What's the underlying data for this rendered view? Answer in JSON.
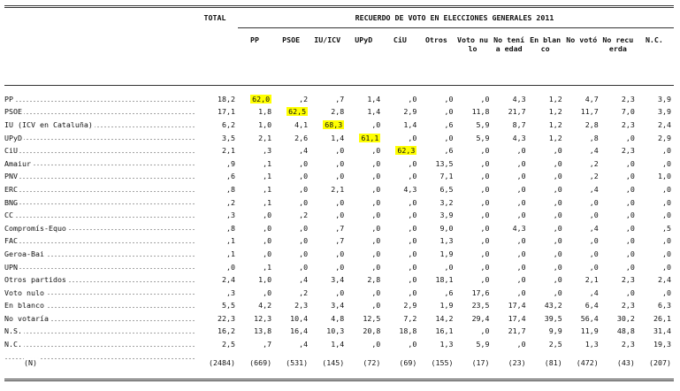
{
  "table": {
    "group_header": "RECUERDO DE VOTO EN ELECCIONES GENERALES 2011",
    "columns": [
      "TOTAL",
      "PP",
      "PSOE",
      "IU/ICV",
      "UPyD",
      "CiU",
      "Otros",
      "Voto nulo",
      "No tenía edad",
      "En blanco",
      "No votó",
      "No recuerda",
      "N.C."
    ],
    "highlight_color": "#ffff00",
    "highlighted_cells": [
      [
        0,
        1
      ],
      [
        1,
        2
      ],
      [
        2,
        3
      ],
      [
        3,
        4
      ],
      [
        4,
        5
      ]
    ],
    "rows": [
      {
        "label": "PP",
        "cells": [
          "18,2",
          "62,0",
          ",2",
          ",7",
          "1,4",
          ",0",
          ",0",
          ",0",
          "4,3",
          "1,2",
          "4,7",
          "2,3",
          "3,9"
        ]
      },
      {
        "label": "PSOE",
        "cells": [
          "17,1",
          "1,8",
          "62,5",
          "2,8",
          "1,4",
          "2,9",
          ",0",
          "11,8",
          "21,7",
          "1,2",
          "11,7",
          "7,0",
          "3,9"
        ]
      },
      {
        "label": "IU (ICV en Cataluña)",
        "cells": [
          "6,2",
          "1,0",
          "4,1",
          "68,3",
          ",0",
          "1,4",
          ",6",
          "5,9",
          "8,7",
          "1,2",
          "2,8",
          "2,3",
          "2,4"
        ]
      },
      {
        "label": "UPyD",
        "cells": [
          "3,5",
          "2,1",
          "2,6",
          "1,4",
          "61,1",
          ",0",
          ",0",
          "5,9",
          "4,3",
          "1,2",
          ",8",
          ",0",
          "2,9"
        ]
      },
      {
        "label": "CiU",
        "cells": [
          "2,1",
          ",3",
          ",4",
          ",0",
          ",0",
          "62,3",
          ",6",
          ",0",
          ",0",
          ",0",
          ",4",
          "2,3",
          ",0"
        ]
      },
      {
        "label": "Amaiur",
        "cells": [
          ",9",
          ",1",
          ",0",
          ",0",
          ",0",
          ",0",
          "13,5",
          ",0",
          ",0",
          ",0",
          ",2",
          ",0",
          ",0"
        ]
      },
      {
        "label": "PNV",
        "cells": [
          ",6",
          ",1",
          ",0",
          ",0",
          ",0",
          ",0",
          "7,1",
          ",0",
          ",0",
          ",0",
          ",2",
          ",0",
          "1,0"
        ]
      },
      {
        "label": "ERC",
        "cells": [
          ",8",
          ",1",
          ",0",
          "2,1",
          ",0",
          "4,3",
          "6,5",
          ",0",
          ",0",
          ",0",
          ",4",
          ",0",
          ",0"
        ]
      },
      {
        "label": "BNG",
        "cells": [
          ",2",
          ",1",
          ",0",
          ",0",
          ",0",
          ",0",
          "3,2",
          ",0",
          ",0",
          ",0",
          ",0",
          ",0",
          ",0"
        ]
      },
      {
        "label": "CC",
        "cells": [
          ",3",
          ",0",
          ",2",
          ",0",
          ",0",
          ",0",
          "3,9",
          ",0",
          ",0",
          ",0",
          ",0",
          ",0",
          ",0"
        ]
      },
      {
        "label": "Compromís-Equo",
        "cells": [
          ",8",
          ",0",
          ",0",
          ",7",
          ",0",
          ",0",
          "9,0",
          ",0",
          "4,3",
          ",0",
          ",4",
          ",0",
          ",5"
        ]
      },
      {
        "label": "FAC",
        "cells": [
          ",1",
          ",0",
          ",0",
          ",7",
          ",0",
          ",0",
          "1,3",
          ",0",
          ",0",
          ",0",
          ",0",
          ",0",
          ",0"
        ]
      },
      {
        "label": "Geroa-Bai",
        "cells": [
          ",1",
          ",0",
          ",0",
          ",0",
          ",0",
          ",0",
          "1,9",
          ",0",
          ",0",
          ",0",
          ",0",
          ",0",
          ",0"
        ]
      },
      {
        "label": "UPN",
        "cells": [
          ",0",
          ",1",
          ",0",
          ",0",
          ",0",
          ",0",
          ",0",
          ",0",
          ",0",
          ",0",
          ",0",
          ",0",
          ",0"
        ]
      },
      {
        "label": "Otros partidos",
        "cells": [
          "2,4",
          "1,0",
          ",4",
          "3,4",
          "2,8",
          ",0",
          "18,1",
          ",0",
          ",0",
          ",0",
          "2,1",
          "2,3",
          "2,4"
        ]
      },
      {
        "label": "Voto nulo",
        "cells": [
          ",3",
          ",0",
          ",2",
          ",0",
          ",0",
          ",0",
          ",6",
          "17,6",
          ",0",
          ",0",
          ",4",
          ",0",
          ",0"
        ]
      },
      {
        "label": "En blanco",
        "cells": [
          "5,5",
          "4,2",
          "2,3",
          "3,4",
          ",0",
          "2,9",
          "1,9",
          "23,5",
          "17,4",
          "43,2",
          "6,4",
          "2,3",
          "6,3"
        ]
      },
      {
        "label": "No votaría",
        "cells": [
          "22,3",
          "12,3",
          "10,4",
          "4,8",
          "12,5",
          "7,2",
          "14,2",
          "29,4",
          "17,4",
          "39,5",
          "56,4",
          "30,2",
          "26,1"
        ]
      },
      {
        "label": "N.S.",
        "cells": [
          "16,2",
          "13,8",
          "16,4",
          "10,3",
          "20,8",
          "18,8",
          "16,1",
          ",0",
          "21,7",
          "9,9",
          "11,9",
          "48,8",
          "31,4"
        ]
      },
      {
        "label": "N.C.",
        "cells": [
          "2,5",
          ",7",
          ",4",
          "1,4",
          ",0",
          ",0",
          "1,3",
          "5,9",
          ",0",
          "2,5",
          "1,3",
          "2,3",
          "19,3"
        ]
      }
    ],
    "total_row": {
      "label": "(N)",
      "cells": [
        "(2484)",
        "(669)",
        "(531)",
        "(145)",
        "(72)",
        "(69)",
        "(155)",
        "(17)",
        "(23)",
        "(81)",
        "(472)",
        "(43)",
        "(207)"
      ]
    }
  }
}
